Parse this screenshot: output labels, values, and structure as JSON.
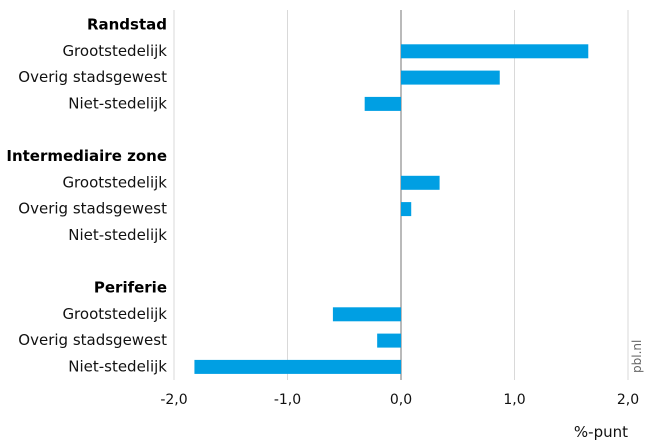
{
  "chart_data": {
    "type": "bar",
    "orientation": "horizontal",
    "groups": [
      {
        "name": "Randstad",
        "categories": [
          "Grootstedelijk",
          "Overig stadsgewest",
          "Niet-stedelijk"
        ],
        "values": [
          1.65,
          0.87,
          -0.32
        ]
      },
      {
        "name": "Intermediaire zone",
        "categories": [
          "Grootstedelijk",
          "Overig stadsgewest",
          "Niet-stedelijk"
        ],
        "values": [
          0.34,
          0.09,
          0.0
        ]
      },
      {
        "name": "Periferie",
        "categories": [
          "Grootstedelijk",
          "Overig stadsgewest",
          "Niet-stedelijk"
        ],
        "values": [
          -0.6,
          -0.21,
          -1.82
        ]
      }
    ],
    "xlim": [
      -2.0,
      2.0
    ],
    "xticks": [
      -2.0,
      -1.0,
      0.0,
      1.0,
      2.0
    ],
    "tick_labels": [
      "-2,0",
      "-1,0",
      "0,0",
      "1,0",
      "2,0"
    ],
    "xlabel": "%-punt",
    "grid": true,
    "bar_color": "#009fe3",
    "source": "pbl.nl"
  }
}
